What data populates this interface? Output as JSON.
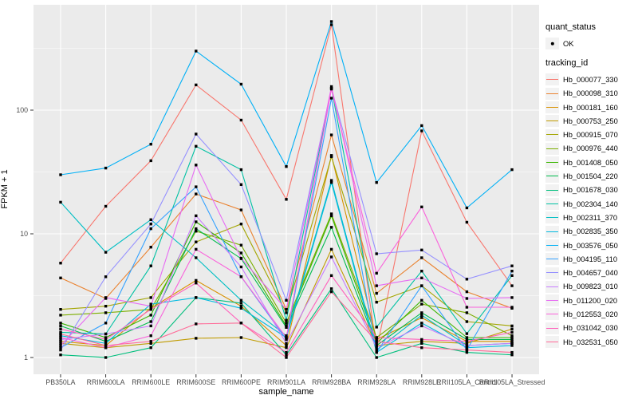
{
  "chart_data": {
    "type": "line",
    "title": "",
    "xlabel": "sample_name",
    "ylabel": "FPKM + 1",
    "y_scale": "log10",
    "ylim": [
      1,
      600
    ],
    "y_ticks": [
      "1",
      "10",
      "100"
    ],
    "grid": "on",
    "legend_position": "right",
    "point_color": "#000000",
    "panel_bg": "#ebebeb",
    "categories": [
      "PB350LA",
      "RRIM600LA",
      "RRIM600LE",
      "RRIM600SE",
      "RRIM600PE",
      "RRIM901LA",
      "RRIM928BA",
      "RRIM928LA",
      "RRIM928LE",
      "RRII105LA_Control",
      "RRII105LA_Stressed"
    ],
    "legend": {
      "quant_status_title": "quant_status",
      "quant_status_items": [
        {
          "label": "OK"
        }
      ],
      "tracking_title": "tracking_id"
    },
    "series": [
      {
        "name": "Hb_000077_330",
        "color": "#F8766D",
        "values": [
          5.8,
          16.7,
          39,
          160,
          83,
          19,
          490,
          1.15,
          68,
          12.4,
          3.8
        ]
      },
      {
        "name": "Hb_000098_310",
        "color": "#EA8331",
        "values": [
          4.4,
          3.0,
          7.8,
          21,
          15.6,
          2.45,
          63,
          3.3,
          6.4,
          3.4,
          2.5
        ]
      },
      {
        "name": "Hb_000181_160",
        "color": "#D89000",
        "values": [
          1.35,
          1.25,
          2.5,
          4.2,
          2.6,
          1.25,
          43,
          1.4,
          2.1,
          1.35,
          1.35
        ]
      },
      {
        "name": "Hb_000753_250",
        "color": "#C09B00",
        "values": [
          1.3,
          1.2,
          1.3,
          1.43,
          1.45,
          1.2,
          7.5,
          1.25,
          1.35,
          1.3,
          1.7
        ]
      },
      {
        "name": "Hb_000915_070",
        "color": "#A3A500",
        "values": [
          2.45,
          2.6,
          3.05,
          8.6,
          12,
          2.3,
          42,
          2.8,
          3.8,
          1.95,
          1.8
        ]
      },
      {
        "name": "Hb_000976_440",
        "color": "#7CAE00",
        "values": [
          2.2,
          2.3,
          2.45,
          10.5,
          8.1,
          1.9,
          14.5,
          1.45,
          2.7,
          2.3,
          1.5
        ]
      },
      {
        "name": "Hb_001408_050",
        "color": "#39B600",
        "values": [
          1.9,
          1.45,
          2.2,
          12.5,
          7.0,
          1.8,
          14,
          1.3,
          2.9,
          1.45,
          1.45
        ]
      },
      {
        "name": "Hb_001504_220",
        "color": "#00BB4E",
        "values": [
          1.8,
          1.35,
          1.95,
          11,
          6.3,
          1.75,
          11.3,
          1.25,
          2.3,
          1.4,
          1.4
        ]
      },
      {
        "name": "Hb_001678_030",
        "color": "#00BF7D",
        "values": [
          1.05,
          1.0,
          1.2,
          3.05,
          2.75,
          1.05,
          3.6,
          1.0,
          1.3,
          1.1,
          1.05
        ]
      },
      {
        "name": "Hb_002304_140",
        "color": "#00C1A3",
        "values": [
          1.6,
          1.55,
          5.5,
          51,
          33,
          2.0,
          150,
          1.76,
          5.0,
          1.56,
          4.6
        ]
      },
      {
        "name": "Hb_002311_370",
        "color": "#00BFC4",
        "values": [
          18,
          7.1,
          13,
          6.4,
          2.9,
          1.5,
          27,
          1.15,
          2.2,
          1.25,
          1.3
        ]
      },
      {
        "name": "Hb_002835_350",
        "color": "#00BAE0",
        "values": [
          1.5,
          1.3,
          2.7,
          3.05,
          2.5,
          1.45,
          26,
          1.1,
          1.9,
          1.2,
          1.25
        ]
      },
      {
        "name": "Hb_003576_050",
        "color": "#00B0F6",
        "values": [
          30,
          34,
          53,
          300,
          162,
          35,
          520,
          26,
          75,
          16.2,
          33
        ]
      },
      {
        "name": "Hb_004195_110",
        "color": "#35A2FF",
        "values": [
          1.2,
          1.9,
          11,
          24,
          4.5,
          1.4,
          125,
          1.1,
          3.8,
          1.15,
          5.0
        ]
      },
      {
        "name": "Hb_004657_040",
        "color": "#9590FF",
        "values": [
          1.15,
          4.5,
          12,
          64,
          25,
          2.9,
          150,
          6.9,
          7.4,
          4.3,
          5.5
        ]
      },
      {
        "name": "Hb_009823_010",
        "color": "#C77CFF",
        "values": [
          1.4,
          1.55,
          1.8,
          14,
          5.4,
          1.3,
          6.5,
          1.2,
          1.8,
          1.25,
          1.3
        ]
      },
      {
        "name": "Hb_011200_020",
        "color": "#E76BF3",
        "values": [
          1.25,
          3.05,
          2.6,
          36,
          6.35,
          2.45,
          155,
          3.8,
          4.4,
          3.0,
          3.05
        ]
      },
      {
        "name": "Hb_012553_020",
        "color": "#FA62DB",
        "values": [
          1.45,
          1.2,
          1.5,
          7.5,
          4.5,
          1.45,
          148,
          4.8,
          16.5,
          2.55,
          2.55
        ]
      },
      {
        "name": "Hb_031042_030",
        "color": "#FF62BC",
        "values": [
          1.7,
          1.4,
          2.45,
          4.0,
          1.9,
          1.1,
          4.6,
          1.45,
          1.4,
          1.35,
          1.6
        ]
      },
      {
        "name": "Hb_032531_050",
        "color": "#FF6A98",
        "values": [
          1.55,
          1.25,
          1.35,
          1.87,
          1.9,
          1.0,
          3.4,
          1.35,
          1.2,
          1.15,
          1.1
        ]
      }
    ]
  }
}
